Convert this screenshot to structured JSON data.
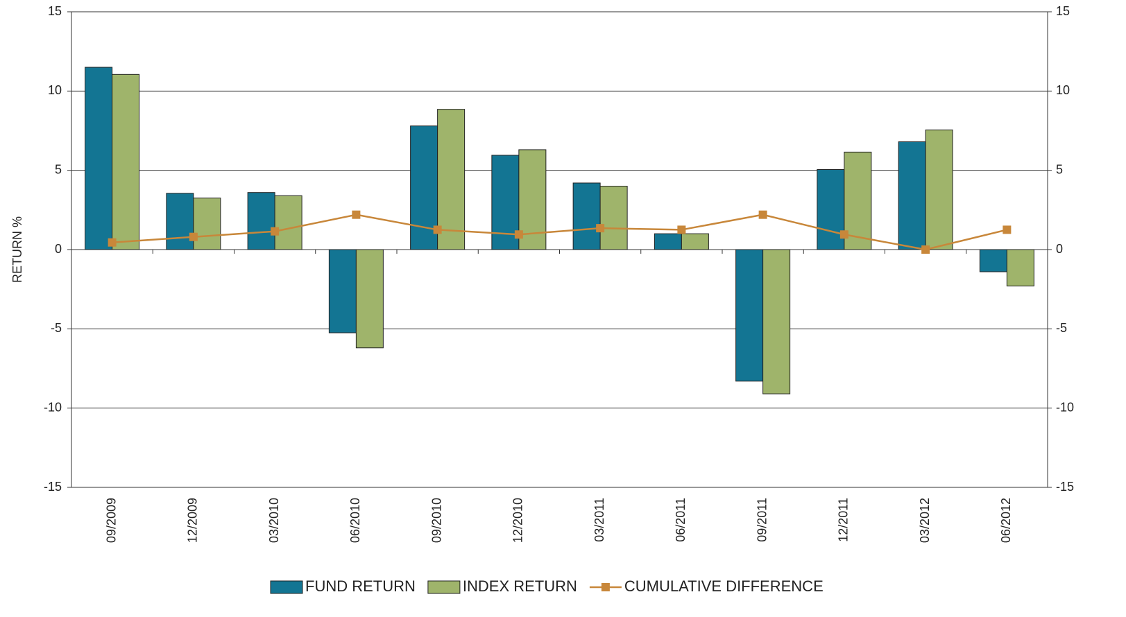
{
  "chart_data": {
    "type": "bar",
    "categories": [
      "09/2009",
      "12/2009",
      "03/2010",
      "06/2010",
      "09/2010",
      "12/2010",
      "03/2011",
      "06/2011",
      "09/2011",
      "12/2011",
      "03/2012",
      "06/2012"
    ],
    "series": [
      {
        "name": "FUND RETURN",
        "color": "#137593",
        "type": "bar",
        "values": [
          11.5,
          3.55,
          3.6,
          -5.25,
          7.8,
          5.95,
          4.2,
          1.0,
          -8.3,
          5.05,
          6.8,
          -1.4
        ]
      },
      {
        "name": "INDEX RETURN",
        "color": "#9fb46b",
        "type": "bar",
        "values": [
          11.05,
          3.25,
          3.4,
          -6.2,
          8.85,
          6.3,
          4.0,
          1.0,
          -9.1,
          6.15,
          7.55,
          -2.3
        ]
      },
      {
        "name": "CUMULATIVE DIFFERENCE",
        "color": "#c8873a",
        "type": "line",
        "axis": "y2",
        "values": [
          0.45,
          0.8,
          1.15,
          2.2,
          1.25,
          0.95,
          1.35,
          1.25,
          2.2,
          0.95,
          0.0,
          1.25
        ]
      }
    ],
    "ylabel": "RETURN %",
    "ylim": [
      -15,
      15
    ],
    "yticks": [
      -15,
      -10,
      -5,
      0,
      5,
      10,
      15
    ],
    "y2lim": [
      -15,
      15
    ],
    "y2ticks": [
      -15,
      -10,
      -5,
      0,
      5,
      10,
      15
    ],
    "grid": true,
    "legend": "bottom"
  }
}
